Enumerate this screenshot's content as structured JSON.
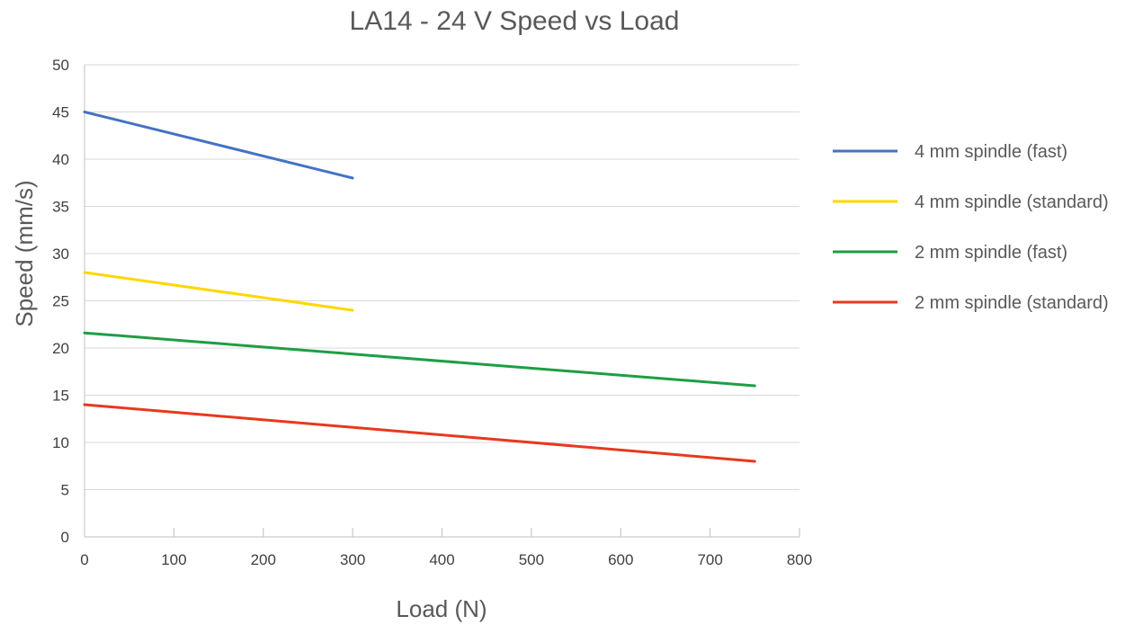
{
  "chart_data": {
    "type": "line",
    "title": "LA14 - 24 V Speed vs Load",
    "xlabel": "Load (N)",
    "ylabel": "Speed (mm/s)",
    "xlim": [
      0,
      800
    ],
    "ylim": [
      0,
      50
    ],
    "x_ticks": [
      0,
      100,
      200,
      300,
      400,
      500,
      600,
      700,
      800
    ],
    "y_ticks": [
      0,
      5,
      10,
      15,
      20,
      25,
      30,
      35,
      40,
      45,
      50
    ],
    "grid": "horizontal",
    "legend_position": "right",
    "series": [
      {
        "name": "4 mm spindle (fast)",
        "color": "#4472c4",
        "x": [
          0,
          300
        ],
        "y": [
          45,
          38
        ]
      },
      {
        "name": "4 mm spindle (standard)",
        "color": "#ffd700",
        "x": [
          0,
          300
        ],
        "y": [
          28,
          24
        ]
      },
      {
        "name": "2 mm spindle (fast)",
        "color": "#1e9e45",
        "x": [
          0,
          750
        ],
        "y": [
          21.6,
          16
        ]
      },
      {
        "name": "2 mm spindle (standard)",
        "color": "#e8381e",
        "x": [
          0,
          750
        ],
        "y": [
          14,
          8
        ]
      }
    ]
  }
}
